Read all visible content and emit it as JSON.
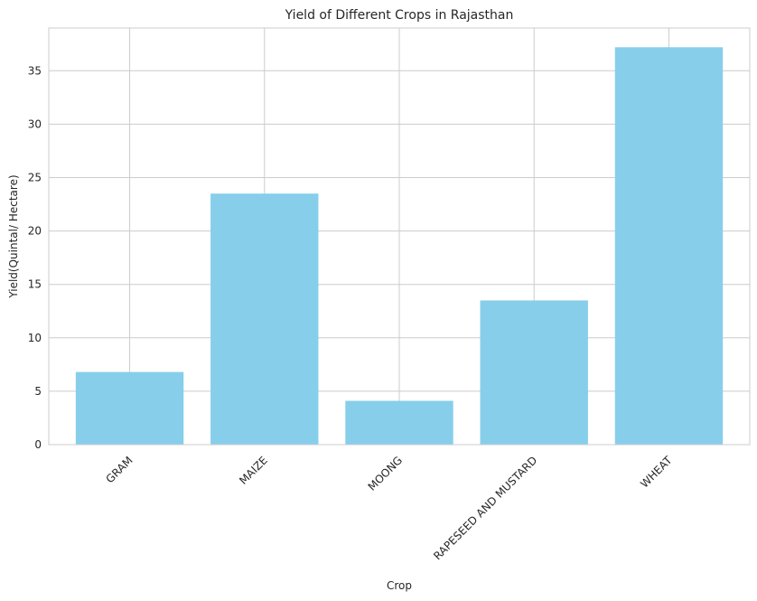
{
  "chart_data": {
    "type": "bar",
    "title": "Yield of Different Crops in Rajasthan",
    "xlabel": "Crop",
    "ylabel": "Yield(Quintal/ Hectare)",
    "categories": [
      "GRAM",
      "MAIZE",
      "MOONG",
      "RAPESEED AND MUSTARD",
      "WHEAT"
    ],
    "values": [
      6.8,
      23.5,
      4.1,
      13.5,
      37.2
    ],
    "ylim": [
      0,
      39
    ],
    "yticks": [
      0,
      5,
      10,
      15,
      20,
      25,
      30,
      35
    ],
    "grid": true,
    "bar_color": "#87ceeb"
  }
}
